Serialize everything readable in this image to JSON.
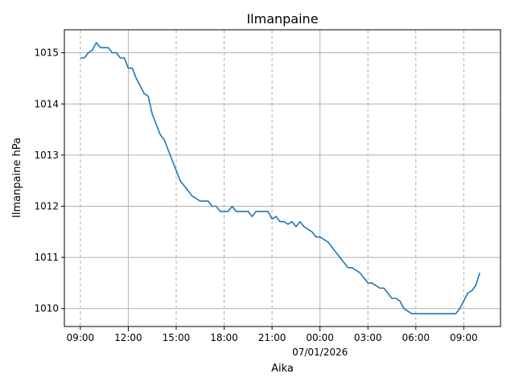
{
  "chart_data": {
    "type": "line",
    "title": "Ilmanpaine",
    "xlabel": "Aika",
    "ylabel": "Ilmanpaine hPa",
    "x_tick_labels": [
      "09:00",
      "12:00",
      "15:00",
      "18:00",
      "21:00",
      "00:00",
      "03:00",
      "06:00",
      "09:00"
    ],
    "x_tick_hours": [
      0,
      3,
      6,
      9,
      12,
      15,
      18,
      21,
      24
    ],
    "x_date_label": "07/01/2026",
    "x_date_label_hour": 15,
    "major_tick_hours": [
      3,
      15
    ],
    "y_ticks": [
      1010,
      1011,
      1012,
      1013,
      1014,
      1015
    ],
    "xlim": [
      -1,
      26.3
    ],
    "ylim": [
      1009.65,
      1015.45
    ],
    "grid": true,
    "colors": {
      "series": "#1f77b4"
    },
    "x_hours": [
      0,
      0.25,
      0.5,
      0.75,
      1,
      1.25,
      1.5,
      1.75,
      2,
      2.25,
      2.5,
      2.75,
      3,
      3.25,
      3.5,
      3.75,
      4,
      4.25,
      4.5,
      4.75,
      5,
      5.25,
      5.5,
      5.75,
      6,
      6.25,
      6.5,
      6.75,
      7,
      7.25,
      7.5,
      7.75,
      8,
      8.25,
      8.5,
      8.75,
      9,
      9.25,
      9.5,
      9.75,
      10,
      10.25,
      10.5,
      10.75,
      11,
      11.25,
      11.5,
      11.75,
      12,
      12.25,
      12.5,
      12.75,
      13,
      13.25,
      13.5,
      13.75,
      14,
      14.25,
      14.5,
      14.75,
      15,
      15.25,
      15.5,
      15.75,
      16,
      16.25,
      16.5,
      16.75,
      17,
      17.25,
      17.5,
      17.75,
      18,
      18.25,
      18.5,
      18.75,
      19,
      19.25,
      19.5,
      19.75,
      20,
      20.25,
      20.5,
      20.75,
      21,
      21.25,
      21.5,
      21.75,
      22,
      22.25,
      22.5,
      22.75,
      23,
      23.25,
      23.5,
      23.75,
      24,
      24.25,
      24.5,
      24.75,
      25
    ],
    "values": [
      1014.9,
      1014.9,
      1015.0,
      1015.05,
      1015.2,
      1015.1,
      1015.1,
      1015.1,
      1015.0,
      1015.0,
      1014.9,
      1014.9,
      1014.7,
      1014.7,
      1014.5,
      1014.35,
      1014.2,
      1014.15,
      1013.8,
      1013.6,
      1013.4,
      1013.3,
      1013.1,
      1012.9,
      1012.7,
      1012.5,
      1012.4,
      1012.3,
      1012.2,
      1012.15,
      1012.1,
      1012.1,
      1012.1,
      1012.0,
      1012.0,
      1011.9,
      1011.9,
      1011.9,
      1012.0,
      1011.9,
      1011.9,
      1011.9,
      1011.9,
      1011.8,
      1011.9,
      1011.9,
      1011.9,
      1011.9,
      1011.75,
      1011.8,
      1011.7,
      1011.7,
      1011.65,
      1011.7,
      1011.6,
      1011.7,
      1011.6,
      1011.55,
      1011.5,
      1011.4,
      1011.4,
      1011.35,
      1011.3,
      1011.2,
      1011.1,
      1011.0,
      1010.9,
      1010.8,
      1010.8,
      1010.75,
      1010.7,
      1010.6,
      1010.5,
      1010.5,
      1010.45,
      1010.4,
      1010.4,
      1010.3,
      1010.2,
      1010.2,
      1010.15,
      1010.0,
      1009.95,
      1009.9,
      1009.9,
      1009.9,
      1009.9,
      1009.9,
      1009.9,
      1009.9,
      1009.9,
      1009.9,
      1009.9,
      1009.9,
      1009.9,
      1010.0,
      1010.15,
      1010.3,
      1010.35,
      1010.45,
      1010.7
    ]
  }
}
